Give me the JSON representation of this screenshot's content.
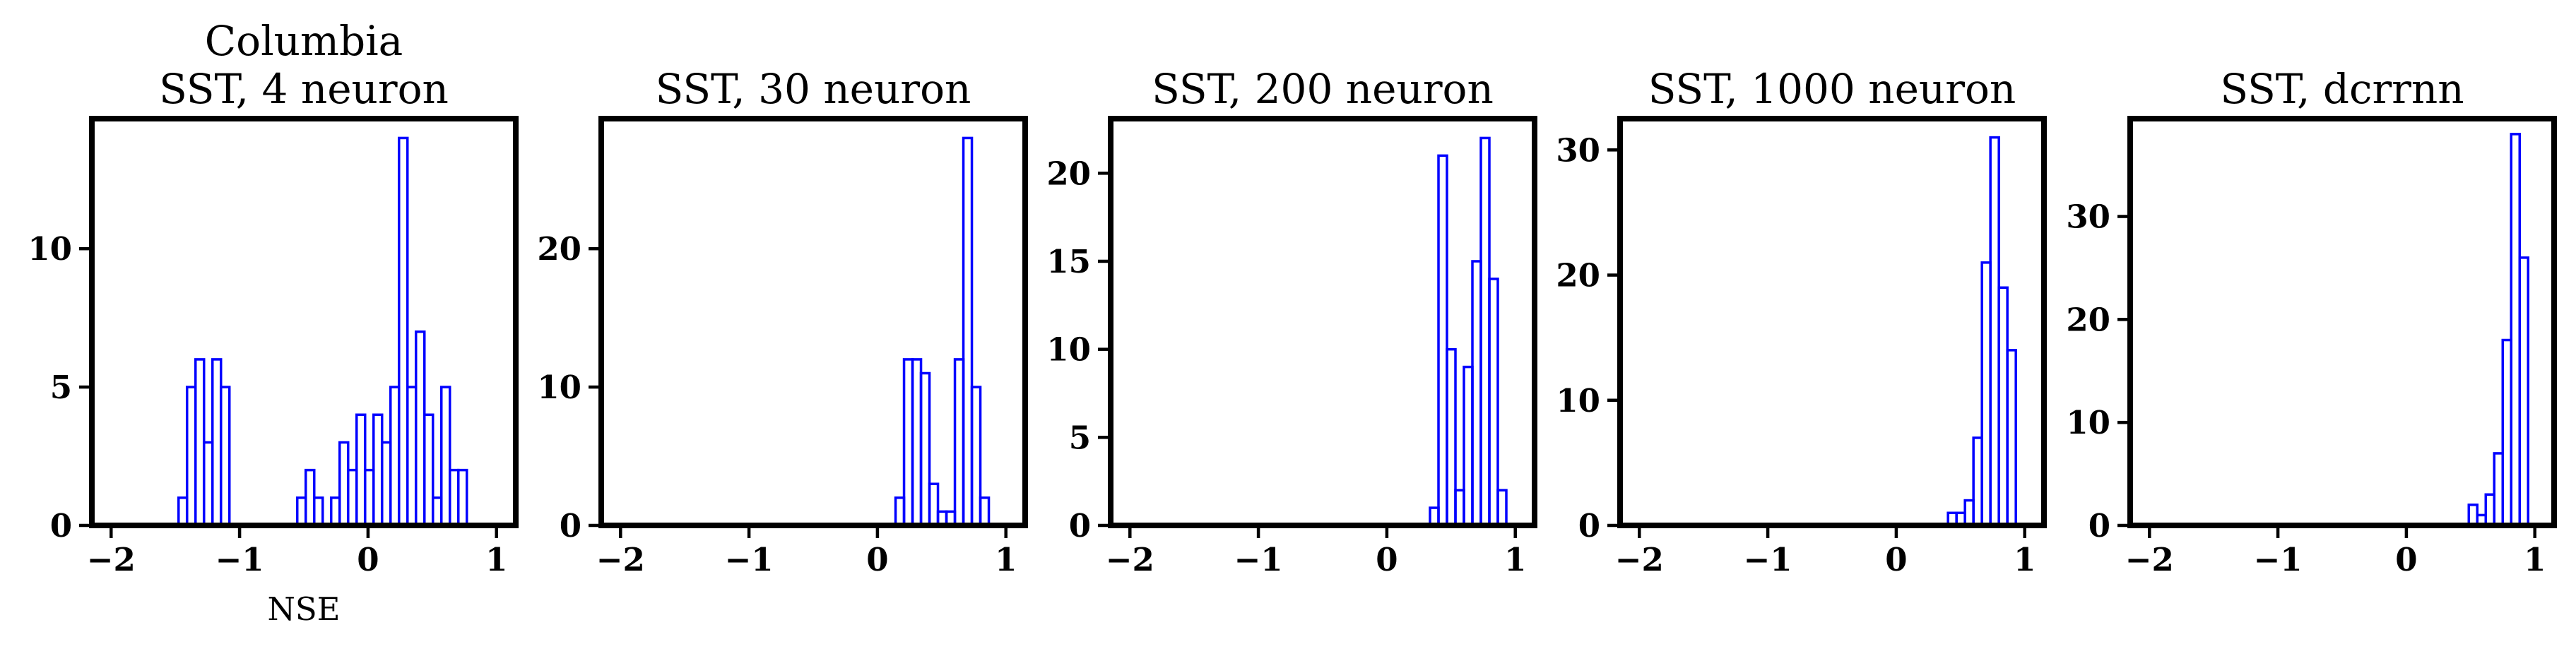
{
  "colors": {
    "bar_edge": "#0000ff",
    "frame": "#000000"
  },
  "chart_data": [
    {
      "type": "histogram",
      "title": "Columbia\nSST, 4 neuron",
      "xlabel": "NSE",
      "ylabel": "",
      "xlim": [
        -2.15,
        1.15
      ],
      "ylim": [
        0,
        14.7
      ],
      "xticks": [
        -2,
        -1,
        0,
        1
      ],
      "xtick_labels": [
        "−2",
        "−1",
        "0",
        "1"
      ],
      "yticks": [
        0,
        5,
        10
      ],
      "ytick_labels": [
        "0",
        "5",
        "10"
      ],
      "bin_width": 0.066,
      "bins": [
        {
          "left": -1.475,
          "count": 1
        },
        {
          "left": -1.409,
          "count": 5
        },
        {
          "left": -1.343,
          "count": 6
        },
        {
          "left": -1.277,
          "count": 3
        },
        {
          "left": -1.211,
          "count": 6
        },
        {
          "left": -1.145,
          "count": 5
        },
        {
          "left": -0.551,
          "count": 1
        },
        {
          "left": -0.485,
          "count": 2
        },
        {
          "left": -0.419,
          "count": 1
        },
        {
          "left": -0.287,
          "count": 1
        },
        {
          "left": -0.221,
          "count": 3
        },
        {
          "left": -0.155,
          "count": 2
        },
        {
          "left": -0.089,
          "count": 4
        },
        {
          "left": -0.023,
          "count": 2
        },
        {
          "left": 0.043,
          "count": 4
        },
        {
          "left": 0.109,
          "count": 3
        },
        {
          "left": 0.175,
          "count": 5
        },
        {
          "left": 0.241,
          "count": 14
        },
        {
          "left": 0.307,
          "count": 5
        },
        {
          "left": 0.373,
          "count": 7
        },
        {
          "left": 0.439,
          "count": 4
        },
        {
          "left": 0.505,
          "count": 1
        },
        {
          "left": 0.571,
          "count": 5
        },
        {
          "left": 0.637,
          "count": 2
        },
        {
          "left": 0.703,
          "count": 2
        }
      ]
    },
    {
      "type": "histogram",
      "title": "SST, 30 neuron",
      "xlabel": "",
      "ylabel": "",
      "xlim": [
        -2.15,
        1.15
      ],
      "ylim": [
        0,
        29.4
      ],
      "xticks": [
        -2,
        -1,
        0,
        1
      ],
      "xtick_labels": [
        "−2",
        "−1",
        "0",
        "1"
      ],
      "yticks": [
        0,
        10,
        20
      ],
      "ytick_labels": [
        "0",
        "10",
        "20"
      ],
      "bin_width": 0.066,
      "bins": [
        {
          "left": 0.141,
          "count": 2
        },
        {
          "left": 0.207,
          "count": 12
        },
        {
          "left": 0.273,
          "count": 12
        },
        {
          "left": 0.339,
          "count": 11
        },
        {
          "left": 0.405,
          "count": 3
        },
        {
          "left": 0.471,
          "count": 1
        },
        {
          "left": 0.537,
          "count": 1
        },
        {
          "left": 0.603,
          "count": 12
        },
        {
          "left": 0.669,
          "count": 28
        },
        {
          "left": 0.735,
          "count": 10
        },
        {
          "left": 0.801,
          "count": 2
        }
      ]
    },
    {
      "type": "histogram",
      "title": "SST, 200 neuron",
      "xlabel": "",
      "ylabel": "",
      "xlim": [
        -2.15,
        1.15
      ],
      "ylim": [
        0,
        23.1
      ],
      "xticks": [
        -2,
        -1,
        0,
        1
      ],
      "xtick_labels": [
        "−2",
        "−1",
        "0",
        "1"
      ],
      "yticks": [
        0,
        5,
        10,
        15,
        20
      ],
      "ytick_labels": [
        "0",
        "5",
        "10",
        "15",
        "20"
      ],
      "bin_width": 0.066,
      "bins": [
        {
          "left": 0.336,
          "count": 1
        },
        {
          "left": 0.402,
          "count": 21
        },
        {
          "left": 0.468,
          "count": 10
        },
        {
          "left": 0.534,
          "count": 2
        },
        {
          "left": 0.6,
          "count": 9
        },
        {
          "left": 0.666,
          "count": 15
        },
        {
          "left": 0.732,
          "count": 22
        },
        {
          "left": 0.798,
          "count": 14
        },
        {
          "left": 0.864,
          "count": 2
        }
      ]
    },
    {
      "type": "histogram",
      "title": "SST, 1000 neuron",
      "xlabel": "",
      "ylabel": "",
      "xlim": [
        -2.15,
        1.15
      ],
      "ylim": [
        0,
        32.5
      ],
      "xticks": [
        -2,
        -1,
        0,
        1
      ],
      "xtick_labels": [
        "−2",
        "−1",
        "0",
        "1"
      ],
      "yticks": [
        0,
        10,
        20,
        30
      ],
      "ytick_labels": [
        "0",
        "10",
        "20",
        "30"
      ],
      "bin_width": 0.066,
      "bins": [
        {
          "left": 0.403,
          "count": 1
        },
        {
          "left": 0.469,
          "count": 1
        },
        {
          "left": 0.535,
          "count": 2
        },
        {
          "left": 0.601,
          "count": 7
        },
        {
          "left": 0.667,
          "count": 21
        },
        {
          "left": 0.733,
          "count": 31
        },
        {
          "left": 0.799,
          "count": 19
        },
        {
          "left": 0.865,
          "count": 14
        }
      ]
    },
    {
      "type": "histogram",
      "title": "SST, dcrrnn",
      "xlabel": "",
      "ylabel": "",
      "xlim": [
        -2.15,
        1.15
      ],
      "ylim": [
        0,
        39.5
      ],
      "xticks": [
        -2,
        -1,
        0,
        1
      ],
      "xtick_labels": [
        "−2",
        "−1",
        "0",
        "1"
      ],
      "yticks": [
        0,
        10,
        20,
        30
      ],
      "ytick_labels": [
        "0",
        "10",
        "20",
        "30"
      ],
      "bin_width": 0.066,
      "bins": [
        {
          "left": 0.486,
          "count": 2
        },
        {
          "left": 0.552,
          "count": 1
        },
        {
          "left": 0.618,
          "count": 3
        },
        {
          "left": 0.684,
          "count": 7
        },
        {
          "left": 0.75,
          "count": 18
        },
        {
          "left": 0.816,
          "count": 38
        },
        {
          "left": 0.882,
          "count": 26
        }
      ]
    }
  ]
}
